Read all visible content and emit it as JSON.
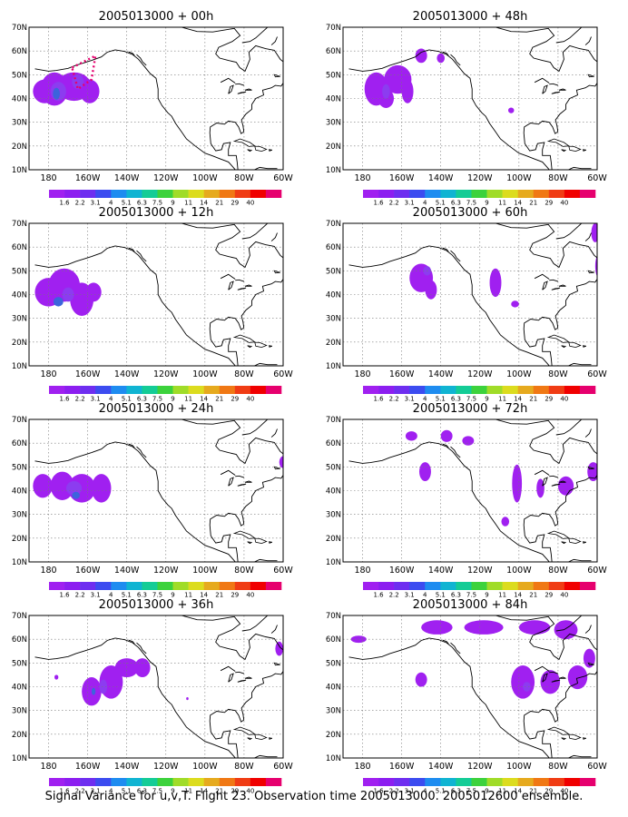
{
  "figure": {
    "caption": "Signal Variance for u,v,T. Flight 23. Observation time 2005013000. 2005012600 ensemble."
  },
  "axes": {
    "lat_labels": [
      "10N",
      "20N",
      "30N",
      "40N",
      "50N",
      "60N",
      "70N"
    ],
    "lon_labels": [
      "180",
      "160W",
      "140W",
      "120W",
      "100W",
      "80W",
      "60W"
    ],
    "lat_range": [
      10,
      70
    ],
    "lon_range": [
      -190,
      -60
    ]
  },
  "colorbar": {
    "labels": [
      "1.6",
      "2.2",
      "3.1",
      "4",
      "5.1",
      "6.3",
      "7.5",
      "9",
      "11",
      "14",
      "21",
      "29",
      "40"
    ],
    "colors": [
      "#a020f0",
      "#8c1ef0",
      "#6e2ef0",
      "#3c4cf0",
      "#1e8cf0",
      "#10b4d2",
      "#14cc96",
      "#3cd23c",
      "#a0dc28",
      "#dcdc1e",
      "#e6aa1e",
      "#f07814",
      "#f03c14",
      "#f00000",
      "#e6006e"
    ]
  },
  "shading": {
    "low": "#a020f0",
    "mid": "#8c3cf0",
    "high": "#3c64dc"
  },
  "panels": [
    {
      "title": "2005013000 + 00h"
    },
    {
      "title": "2005013000 + 48h"
    },
    {
      "title": "2005013000 + 12h"
    },
    {
      "title": "2005013000 + 60h"
    },
    {
      "title": "2005013000 + 24h"
    },
    {
      "title": "2005013000 + 72h"
    },
    {
      "title": "2005013000 + 36h"
    },
    {
      "title": "2005013000 + 84h"
    }
  ]
}
